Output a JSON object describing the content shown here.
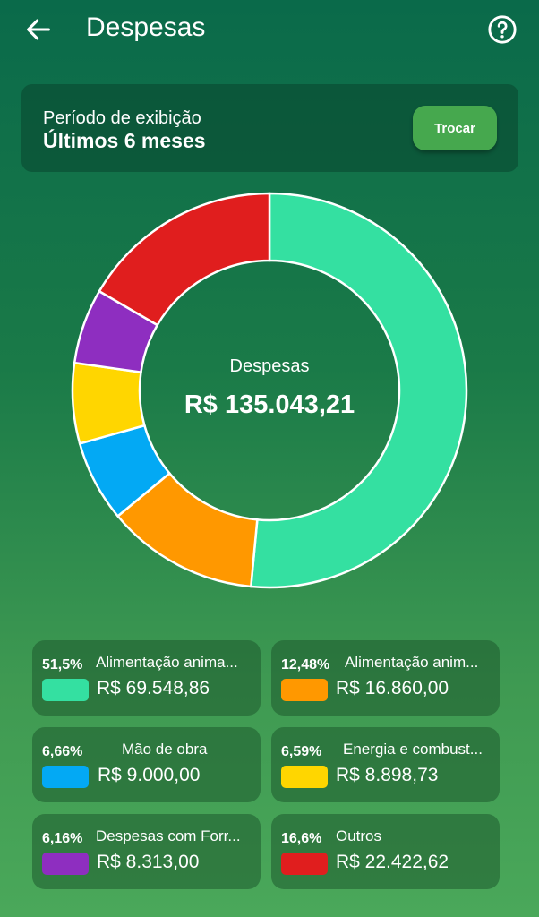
{
  "header": {
    "title": "Despesas",
    "back_icon": "arrow-left-icon",
    "help_icon": "help-circle-icon"
  },
  "period": {
    "label": "Período de exibição",
    "value": "Últimos 6 meses",
    "button": "Trocar"
  },
  "center": {
    "label": "Despesas",
    "total": "R$ 135.043,21"
  },
  "colors": {
    "accent": "#46a84e"
  },
  "categories": [
    {
      "pct": "51,5%",
      "name": "Alimentação anima...",
      "amount": "R$ 69.548,86",
      "color": "#34e0a1"
    },
    {
      "pct": "12,48%",
      "name": "Alimentação anim...",
      "amount": "R$ 16.860,00",
      "color": "#ff9800"
    },
    {
      "pct": "6,66%",
      "name": "Mão de obra",
      "amount": "R$ 9.000,00",
      "color": "#03a9f4"
    },
    {
      "pct": "6,59%",
      "name": "Energia e combust...",
      "amount": "R$ 8.898,73",
      "color": "#ffd600"
    },
    {
      "pct": "6,16%",
      "name": "Despesas com Forr...",
      "amount": "R$ 8.313,00",
      "color": "#8e2ec0"
    },
    {
      "pct": "16,6%",
      "name": "Outros",
      "amount": "R$ 22.422,62",
      "color": "#e01e1e"
    }
  ],
  "chart_data": {
    "type": "pie",
    "donut": true,
    "values": [
      69548.86,
      16860.0,
      9000.0,
      8898.73,
      8313.0,
      22422.62
    ],
    "colors": [
      "#34e0a1",
      "#ff9800",
      "#03a9f4",
      "#ffd600",
      "#8e2ec0",
      "#e01e1e"
    ]
  }
}
